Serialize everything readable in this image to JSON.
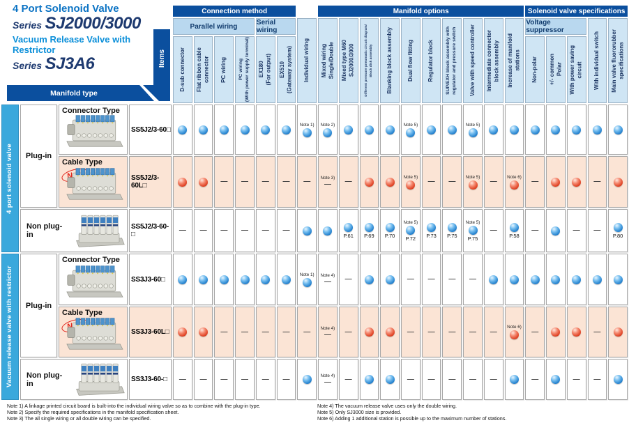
{
  "page": {
    "titles": {
      "line1": "4 Port Solenoid Valve",
      "series1_prefix": "Series",
      "series1": "SJ2000/3000",
      "line2": "Vacuum Release Valve with Restrictor",
      "series2_prefix": "Series",
      "series2": "SJ3A6"
    },
    "corner": {
      "items": "Items",
      "manifold_type": "Manifold type"
    }
  },
  "header": {
    "groups": [
      {
        "label": "Connection method",
        "from": 1,
        "to": 6
      },
      {
        "label": "Manifold options",
        "from": 8,
        "to": 17
      },
      {
        "label": "Solenoid valve specifications",
        "from": 18,
        "to": 22
      }
    ],
    "subgroups": [
      {
        "label": "Parallel wiring",
        "from": 1,
        "to": 4
      },
      {
        "label": "Serial wiring",
        "from": 5,
        "to": 6
      },
      {
        "label": "Voltage suppressor",
        "from": 18,
        "to": 20
      }
    ],
    "columns": [
      {
        "label": "D-sub connector"
      },
      {
        "label": "Flat ribbon cable\nconnector"
      },
      {
        "label": "PC wiring"
      },
      {
        "label": "PC wiring\n(With power supply terminal)",
        "size": "sm"
      },
      {
        "label": "EX180\n(For output)"
      },
      {
        "label": "EX510\n(Gateway system)"
      },
      {
        "label": "Individual wiring"
      },
      {
        "label": "Mixed wiring\nSingle/Double"
      },
      {
        "label": "Mixed type M60\nSJ2000/3000"
      },
      {
        "label": "Different pressure pneumatic circuit diagram/\nBlock disk assembly",
        "size": "xs"
      },
      {
        "label": "Blanking block assembly"
      },
      {
        "label": "Dual flow fitting"
      },
      {
        "label": "Regulator block"
      },
      {
        "label": "SUP/EXH block assembly with\nregulator and pressure switch",
        "size": "sm"
      },
      {
        "label": "Valve with speed controller"
      },
      {
        "label": "Intermediate connector\nblock assembly"
      },
      {
        "label": "Increase of manifold\nstations"
      },
      {
        "label": "Non-polar"
      },
      {
        "label": "+/- common\nPolar"
      },
      {
        "label": "With power saving\ncircuit"
      },
      {
        "label": "With individual switch"
      },
      {
        "label": "Main valve fluororubber\nspecifications"
      }
    ]
  },
  "body": {
    "row_groups": [
      {
        "label": "4 port solenoid valve",
        "rows": [
          1,
          3
        ]
      },
      {
        "label": "Vacuum release valve with restrictor",
        "rows": [
          4,
          6
        ]
      }
    ],
    "sections": [
      {
        "label": "Plug-in",
        "rows": [
          1,
          2
        ]
      },
      {
        "label": "Non plug-in",
        "rows": [
          3,
          3
        ]
      },
      {
        "label": "Plug-in",
        "rows": [
          4,
          5
        ]
      },
      {
        "label": "Non plug-in",
        "rows": [
          6,
          6
        ]
      }
    ],
    "rows": [
      {
        "type_label": "Connector Type",
        "badge": "",
        "model": "SS5J2/3-60□",
        "dot": "blue",
        "highlight": false,
        "image": "plug",
        "cells": [
          "dot",
          "dot",
          "dot",
          "dot",
          "dot",
          "dot",
          {
            "v": "dot",
            "note": "Note 1)"
          },
          {
            "v": "dot",
            "note": "Note 2)"
          },
          "dot",
          "dot",
          "dot",
          {
            "v": "dot",
            "note": "Note 5)"
          },
          "dot",
          "dot",
          {
            "v": "dot",
            "note": "Note 5)"
          },
          "dot",
          "dot",
          "dot",
          "dot",
          "dot",
          "dot",
          "dot"
        ]
      },
      {
        "type_label": "Cable Type",
        "badge": "New",
        "model": "SS5J2/3-60L□",
        "dot": "red",
        "highlight": true,
        "image": "plug",
        "cells": [
          "dot",
          "dot",
          "dash",
          "dash",
          "dash",
          "dash",
          "dash",
          {
            "v": "dash",
            "note": "Note 3)"
          },
          "dash",
          "dot",
          "dot",
          {
            "v": "dot",
            "note": "Note 5)"
          },
          "dash",
          "dash",
          {
            "v": "dot",
            "note": "Note 5)"
          },
          "dash",
          {
            "v": "dot",
            "note": "Note 6)"
          },
          "dash",
          "dot",
          "dot",
          "dash",
          "dot"
        ]
      },
      {
        "type_label": "",
        "badge": "",
        "model": "SS5J2/3-60-□",
        "dot": "blue",
        "highlight": false,
        "image": "nonplug",
        "cells": [
          "dash",
          "dash",
          "dash",
          "dash",
          "dash",
          "dash",
          "dot",
          "dot",
          {
            "v": "dot",
            "page": "P.61"
          },
          {
            "v": "dot",
            "page": "P.69"
          },
          {
            "v": "dot",
            "page": "P.70"
          },
          {
            "v": "dot",
            "note": "Note 5)",
            "page": "P.72"
          },
          {
            "v": "dot",
            "page": "P.73"
          },
          {
            "v": "dot",
            "page": "P.75"
          },
          {
            "v": "dot",
            "note": "Note 5)",
            "page": "P.75"
          },
          "dash",
          {
            "v": "dot",
            "page": "P.58"
          },
          "dash",
          "dot",
          "dash",
          "dash",
          {
            "v": "dot",
            "page": "P.80"
          }
        ]
      },
      {
        "type_label": "Connector Type",
        "badge": "",
        "model": "SS3J3-60□",
        "dot": "blue",
        "highlight": false,
        "image": "plug",
        "cells": [
          "dot",
          "dot",
          "dot",
          "dot",
          "dot",
          "dot",
          {
            "v": "dot",
            "note": "Note 1)"
          },
          {
            "v": "dash",
            "note": "Note 4)"
          },
          "dash",
          "dot",
          "dot",
          "dash",
          "dash",
          "dash",
          "dash",
          "dot",
          "dot",
          "dot",
          "dot",
          "dot",
          "dot",
          "dot"
        ]
      },
      {
        "type_label": "Cable Type",
        "badge": "New",
        "model": "SS3J3-60L□",
        "dot": "red",
        "highlight": true,
        "image": "plug",
        "cells": [
          "dot",
          "dot",
          "dash",
          "dash",
          "dash",
          "dash",
          "dash",
          {
            "v": "dash",
            "note": "Note 4)"
          },
          "dash",
          "dot",
          "dot",
          "dash",
          "dash",
          "dash",
          "dash",
          "dash",
          {
            "v": "dot",
            "note": "Note 6)"
          },
          "dash",
          "dot",
          "dot",
          "dash",
          "dot"
        ]
      },
      {
        "type_label": "",
        "badge": "",
        "model": "SS3J3-60-□",
        "dot": "blue",
        "highlight": false,
        "image": "nonplug",
        "cells": [
          "dash",
          "dash",
          "dash",
          "dash",
          "dash",
          "dash",
          "dot",
          {
            "v": "dash",
            "note": "Note 4)"
          },
          "dash",
          "dot",
          "dot",
          "dash",
          "dash",
          "dash",
          "dash",
          "dash",
          "dot",
          "dash",
          "dot",
          "dash",
          "dash",
          "dot"
        ]
      }
    ]
  },
  "notes": {
    "left": [
      "Note 1) A linkage printed circuit board is built-into the individual wiring valve so as to combine with the plug-in type.",
      "Note 2) Specify the required specifications in the manifold specification sheet.",
      "Note 3) The all single wiring or all double wiring can be specified."
    ],
    "right": [
      "Note 4) The vacuum release valve uses only the double wiring.",
      "Note 5) Only SJ3000 size is provided.",
      "Note 6) Adding 1 additional station is possible up to the maximum number of stations."
    ]
  },
  "colors": {
    "navy_band": "#0b4f9e",
    "header_blue": "#cfe5f4",
    "subband_blue": "#b9d8ef",
    "strip_cyan": "#3aa8dc",
    "row_highlight": "#fbe4d5",
    "dot_blue": "#1d7ccb",
    "dot_red": "#dd3a1c",
    "new_badge_red": "#e1251b",
    "title_blue": "#0b73c4",
    "title_light_blue": "#0b8fd9",
    "series_navy": "#1e3a70"
  }
}
